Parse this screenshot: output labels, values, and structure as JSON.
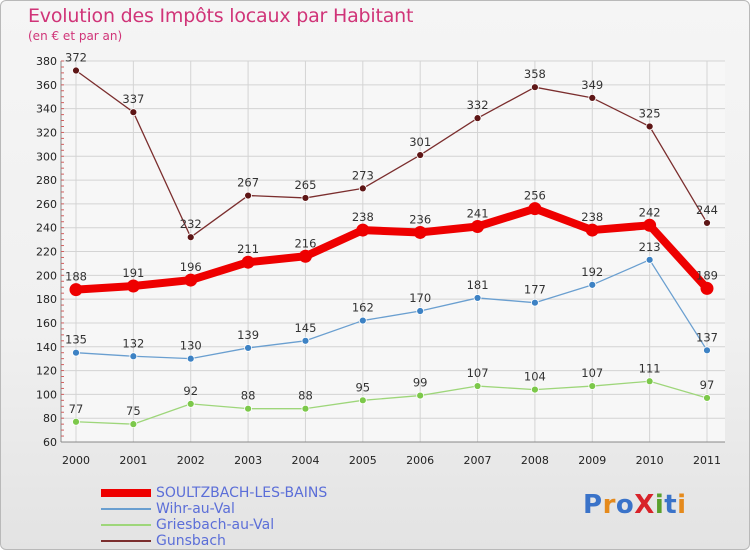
{
  "header": {
    "title": "Evolution des Impôts locaux par Habitant",
    "subtitle": "(en € et par an)"
  },
  "logo": {
    "text": "ProXiti",
    "colors": [
      "#3a73c9",
      "#e58a1c",
      "#3a73c9",
      "#d8232a",
      "#5aa02c",
      "#3a73c9",
      "#e58a1c"
    ]
  },
  "chart_data": {
    "type": "line",
    "title": "Evolution des Impôts locaux par Habitant",
    "subtitle": "(en € et par an)",
    "xlabel": "",
    "ylabel": "",
    "x": [
      "2000",
      "2001",
      "2002",
      "2003",
      "2004",
      "2005",
      "2006",
      "2007",
      "2008",
      "2009",
      "2010",
      "2011"
    ],
    "ylim": [
      60,
      380
    ],
    "yticks": [
      60,
      80,
      100,
      120,
      140,
      160,
      180,
      200,
      220,
      240,
      260,
      280,
      300,
      320,
      340,
      360,
      380
    ],
    "grid": true,
    "legend_position": "bottom-left",
    "series": [
      {
        "name": "Gunsbach",
        "color": "#7b2e2e",
        "marker": "#5e1616",
        "width": 1.3,
        "values": [
          372,
          337,
          232,
          267,
          265,
          273,
          301,
          332,
          358,
          349,
          325,
          244
        ]
      },
      {
        "name": "Wihr-au-Val",
        "color": "#6a9fd0",
        "marker": "#3d82c4",
        "width": 1.3,
        "values": [
          135,
          132,
          130,
          139,
          145,
          162,
          170,
          181,
          177,
          192,
          213,
          137
        ]
      },
      {
        "name": "Griesbach-au-Val",
        "color": "#9ed67a",
        "marker": "#7cc84a",
        "width": 1.3,
        "values": [
          77,
          75,
          92,
          88,
          88,
          95,
          99,
          107,
          104,
          107,
          111,
          97
        ]
      },
      {
        "name": "SOULTZBACH-LES-BAINS",
        "color": "#ee0000",
        "marker": "#ee0000",
        "width": 8,
        "values": [
          188,
          191,
          196,
          211,
          216,
          238,
          236,
          241,
          256,
          238,
          242,
          189
        ]
      }
    ]
  }
}
